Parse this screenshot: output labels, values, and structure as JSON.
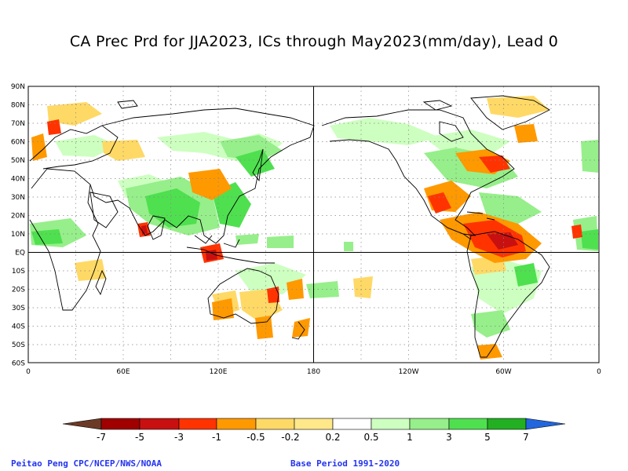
{
  "title": "CA Prec Prd for JJA2023, ICs through May2023(mm/day), Lead 0",
  "lat_labels": [
    "90N",
    "80N",
    "70N",
    "60N",
    "50N",
    "40N",
    "30N",
    "20N",
    "10N",
    "EQ",
    "10S",
    "20S",
    "30S",
    "40S",
    "50S",
    "60S"
  ],
  "lon_labels": [
    "0",
    "60E",
    "120E",
    "180",
    "120W",
    "60W",
    "0"
  ],
  "colorbar": {
    "labels": [
      "-7",
      "-5",
      "-3",
      "-1",
      "-0.5",
      "-0.2",
      "0.2",
      "0.5",
      "1",
      "3",
      "5",
      "7"
    ],
    "colors": [
      "#6b3a26",
      "#a00000",
      "#c81010",
      "#ff3300",
      "#ff9900",
      "#ffd966",
      "#ffe88a",
      "#ffffff",
      "#cdffc0",
      "#96ef8a",
      "#4fe04f",
      "#22b022",
      "#109010",
      "#2266dd"
    ]
  },
  "footer_left": "Peitao Peng CPC/NCEP/NWS/NOAA",
  "footer_right": "Base Period 1991-2020"
}
